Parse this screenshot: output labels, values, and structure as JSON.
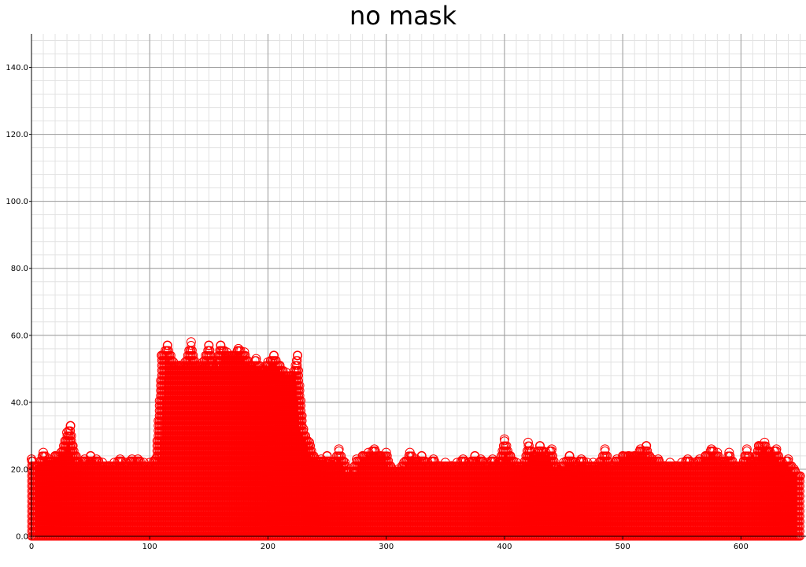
{
  "chart_data": {
    "type": "scatter",
    "title": "no mask",
    "xlabel": "",
    "ylabel": "",
    "xlim": [
      0,
      655
    ],
    "ylim": [
      0,
      150
    ],
    "x_ticks": [
      0,
      100,
      200,
      300,
      400,
      500,
      600
    ],
    "x_tick_labels": [
      "0",
      "100",
      "200",
      "300",
      "400",
      "500",
      "600"
    ],
    "y_ticks": [
      0,
      20,
      40,
      60,
      80,
      100,
      120,
      140
    ],
    "y_tick_labels": [
      "0.0",
      "20.0",
      "40.0",
      "60.0",
      "80.0",
      "100.0",
      "120.0",
      "140.0"
    ],
    "grid": true,
    "legend": "none",
    "marker": "open-circle",
    "series": [
      {
        "color": "#ff0000",
        "x": [
          0,
          5,
          10,
          15,
          20,
          25,
          30,
          33,
          35,
          40,
          45,
          50,
          55,
          60,
          65,
          70,
          75,
          80,
          85,
          90,
          95,
          100,
          105,
          110,
          115,
          120,
          125,
          130,
          135,
          140,
          145,
          150,
          155,
          160,
          165,
          170,
          175,
          180,
          185,
          190,
          195,
          200,
          205,
          210,
          215,
          220,
          225,
          230,
          235,
          240,
          245,
          250,
          255,
          260,
          265,
          270,
          275,
          280,
          285,
          290,
          295,
          300,
          305,
          310,
          315,
          320,
          325,
          330,
          335,
          340,
          345,
          350,
          355,
          360,
          365,
          370,
          375,
          380,
          385,
          390,
          395,
          400,
          405,
          410,
          415,
          420,
          425,
          430,
          435,
          440,
          445,
          450,
          455,
          460,
          465,
          470,
          475,
          480,
          485,
          490,
          495,
          500,
          505,
          510,
          515,
          520,
          525,
          530,
          535,
          540,
          545,
          550,
          555,
          560,
          565,
          570,
          575,
          580,
          585,
          590,
          595,
          600,
          605,
          610,
          615,
          620,
          625,
          630,
          635,
          640,
          645,
          650
        ],
        "y": [
          23,
          21,
          25,
          23,
          24,
          25,
          31,
          33,
          27,
          22,
          23,
          24,
          23,
          22,
          21,
          22,
          23,
          22,
          23,
          23,
          22,
          22,
          23,
          54,
          57,
          52,
          51,
          52,
          58,
          51,
          52,
          57,
          50,
          57,
          55,
          54,
          56,
          55,
          51,
          53,
          50,
          52,
          54,
          51,
          49,
          48,
          54,
          32,
          28,
          23,
          23,
          24,
          22,
          26,
          22,
          18,
          23,
          24,
          25,
          26,
          24,
          25,
          20,
          20,
          22,
          25,
          23,
          24,
          22,
          23,
          21,
          22,
          21,
          22,
          23,
          22,
          24,
          23,
          22,
          23,
          22,
          29,
          24,
          22,
          21,
          28,
          24,
          27,
          25,
          26,
          20,
          22,
          24,
          22,
          23,
          22,
          22,
          22,
          26,
          21,
          23,
          24,
          24,
          24,
          26,
          27,
          23,
          23,
          21,
          22,
          21,
          22,
          23,
          22,
          23,
          24,
          26,
          25,
          22,
          25,
          21,
          21,
          26,
          22,
          27,
          28,
          25,
          26,
          22,
          23,
          20,
          18
        ]
      }
    ]
  }
}
